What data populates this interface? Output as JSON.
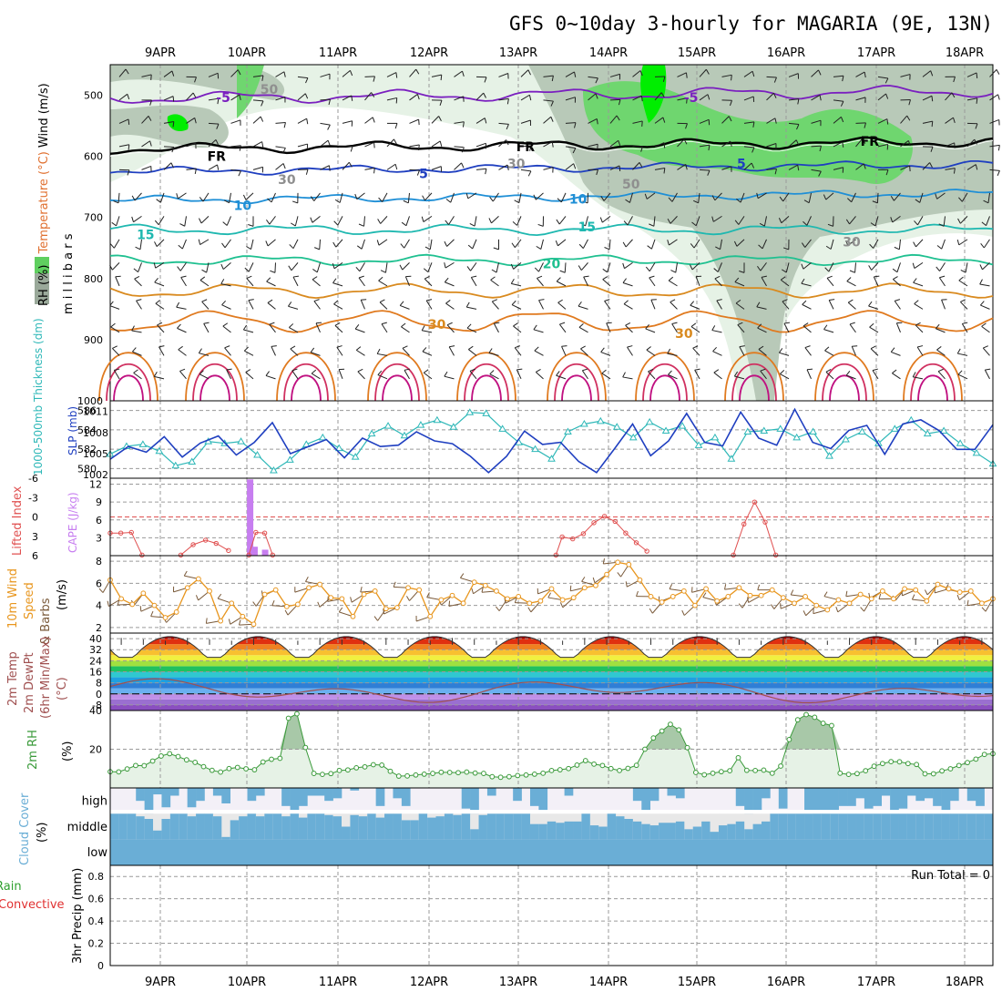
{
  "title": "GFS 0~10day 3-hourly for MAGARIA (9E, 13N)",
  "dates": [
    "9APR",
    "10APR",
    "11APR",
    "12APR",
    "13APR",
    "14APR",
    "15APR",
    "16APR",
    "17APR",
    "18APR"
  ],
  "colors": {
    "frame": "#000000",
    "grid": "#9a9a9a",
    "rh_light": "#e6f2e6",
    "rh_mid": "#b8c9b8",
    "rh_green": "#6fd66f",
    "rh_bright": "#00ee00",
    "thickness": "#2fb8b8",
    "slp": "#1f3fc0",
    "cape": "#c77ef0",
    "lifted": "#e05050",
    "wind10": "#e8961e",
    "barb10": "#7a5a3a",
    "dewpt": "#a05050",
    "rh2m": "#3a9a3a",
    "cloud": "#6aaed6",
    "cloud_bg": "#f3f0f7"
  },
  "chart_data": [
    {
      "type": "area",
      "panel": "upper-air",
      "ylabel_parts": [
        "RH (%)",
        "Temperature (°C)",
        "Wind (m/s)"
      ],
      "ylabel_units": "m i l l i b a r s",
      "yticks": [
        "500",
        "600",
        "700",
        "800",
        "900",
        "1000"
      ],
      "ylim": [
        1000,
        450
      ],
      "isotherm_labels": [
        {
          "label": "-5",
          "color": "#7a1fbf",
          "t": 0.12,
          "p": 504
        },
        {
          "label": "-5",
          "color": "#7a1fbf",
          "t": 0.65,
          "p": 504
        },
        {
          "label": "FR",
          "color": "#000000",
          "t": 0.11,
          "p": 600
        },
        {
          "label": "FR",
          "color": "#000000",
          "t": 0.46,
          "p": 584
        },
        {
          "label": "FR",
          "color": "#000000",
          "t": 0.85,
          "p": 575
        },
        {
          "label": "5",
          "color": "#1f3fc0",
          "t": 0.35,
          "p": 628
        },
        {
          "label": "5",
          "color": "#1f3fc0",
          "t": 0.71,
          "p": 612
        },
        {
          "label": "10",
          "color": "#1f8fd6",
          "t": 0.14,
          "p": 680
        },
        {
          "label": "10",
          "color": "#1f8fd6",
          "t": 0.52,
          "p": 670
        },
        {
          "label": "15",
          "color": "#1fb8b0",
          "t": 0.03,
          "p": 728
        },
        {
          "label": "15",
          "color": "#1fb8b0",
          "t": 0.53,
          "p": 715
        },
        {
          "label": "20",
          "color": "#1fc090",
          "t": 0.49,
          "p": 776
        },
        {
          "label": "30",
          "color": "#d98a1f",
          "t": 0.36,
          "p": 875
        },
        {
          "label": "30",
          "color": "#d98a1f",
          "t": 0.64,
          "p": 890
        },
        {
          "label": "50",
          "color": "#8f8f8f",
          "t": 0.17,
          "p": 490
        },
        {
          "label": "50",
          "color": "#8f8f8f",
          "t": 0.58,
          "p": 645
        },
        {
          "label": "30",
          "color": "#8f8f8f",
          "t": 0.45,
          "p": 612
        },
        {
          "label": "30",
          "color": "#8f8f8f",
          "t": 0.19,
          "p": 638
        },
        {
          "label": "30",
          "color": "#8f8f8f",
          "t": 0.83,
          "p": 740
        }
      ]
    },
    {
      "type": "line",
      "panel": "thickness-slp",
      "ylabel_left": "1000-500mb Thickness (dm)",
      "ylabel_right": "SLP (mb)",
      "left_ticks": [
        "586",
        "584",
        "582",
        "580"
      ],
      "left_lim": [
        579,
        587
      ],
      "right_ticks": [
        "1011",
        "1008",
        "1005",
        "1002"
      ],
      "right_lim": [
        1001.5,
        1012.5
      ],
      "series": [
        {
          "key": "thickness",
          "values": [
            581.5,
            582.3,
            582.5,
            581.8,
            580.3,
            580.7,
            582.8,
            582.6,
            582.8,
            581.4,
            579.8,
            580.9,
            582.5,
            583.2,
            582.1,
            581.2,
            583.6,
            584.4,
            583.4,
            584.5,
            585.0,
            584.3,
            585.8,
            585.7,
            584.1,
            582.7,
            582.0,
            581.0,
            583.8,
            584.6,
            584.9,
            584.3,
            583.2,
            584.8,
            583.9,
            584.4,
            582.4,
            583.2,
            581.0,
            583.8,
            583.9,
            584.1,
            583.2,
            583.8,
            581.3,
            583.0,
            583.8,
            582.6,
            584.1,
            585.0,
            583.6,
            583.9,
            582.6,
            581.6,
            580.5
          ]
        },
        {
          "key": "slp",
          "values": [
            1004.2,
            1006.0,
            1005.2,
            1007.4,
            1004.5,
            1006.5,
            1007.5,
            1004.8,
            1006.6,
            1009.4,
            1005.0,
            1006.0,
            1007.0,
            1004.4,
            1007.2,
            1006.0,
            1006.2,
            1008.1,
            1006.8,
            1006.4,
            1004.6,
            1002.3,
            1004.6,
            1008.2,
            1006.3,
            1006.6,
            1003.9,
            1002.3,
            1005.7,
            1009.2,
            1004.7,
            1006.8,
            1010.7,
            1006.6,
            1006.1,
            1010.9,
            1007.2,
            1006.2,
            1011.3,
            1006.6,
            1005.7,
            1008.3,
            1009.0,
            1004.9,
            1009.2,
            1009.8,
            1008.3,
            1005.6,
            1005.6,
            1009.1
          ]
        }
      ]
    },
    {
      "type": "bar",
      "panel": "cape-lifted",
      "ylabel_left": "Lifted Index",
      "ylabel_right": "CAPE (J/kg)",
      "left_ticks": [
        "-6",
        "-3",
        "0",
        "3",
        "6"
      ],
      "right_ticks": [
        "12",
        "9",
        "6",
        "3"
      ],
      "cape_lim": [
        0,
        13
      ],
      "cape_bars": [
        {
          "t": 0.158,
          "value": 12.8
        },
        {
          "t": 0.163,
          "value": 1.5
        },
        {
          "t": 0.175,
          "value": 1.0
        }
      ],
      "lifted_zero_line": 0,
      "lifted_segments": [
        [
          {
            "t": 0.0,
            "v": 2.5
          },
          {
            "t": 0.012,
            "v": 2.5
          },
          {
            "t": 0.024,
            "v": 2.4
          },
          {
            "t": 0.036,
            "v": 5.9
          }
        ],
        [
          {
            "t": 0.08,
            "v": 5.9
          },
          {
            "t": 0.094,
            "v": 4.3
          },
          {
            "t": 0.108,
            "v": 3.6
          },
          {
            "t": 0.12,
            "v": 4.1
          },
          {
            "t": 0.134,
            "v": 5.2
          }
        ],
        [
          {
            "t": 0.157,
            "v": 5.9
          },
          {
            "t": 0.165,
            "v": 2.4
          },
          {
            "t": 0.175,
            "v": 2.5
          },
          {
            "t": 0.184,
            "v": 5.9
          }
        ],
        [
          {
            "t": 0.505,
            "v": 5.9
          },
          {
            "t": 0.512,
            "v": 3.1
          },
          {
            "t": 0.524,
            "v": 3.4
          },
          {
            "t": 0.536,
            "v": 2.6
          },
          {
            "t": 0.548,
            "v": 0.9
          },
          {
            "t": 0.56,
            "v": -0.1
          },
          {
            "t": 0.572,
            "v": 0.7
          },
          {
            "t": 0.584,
            "v": 2.5
          },
          {
            "t": 0.596,
            "v": 4.0
          },
          {
            "t": 0.608,
            "v": 5.3
          }
        ],
        [
          {
            "t": 0.706,
            "v": 5.9
          },
          {
            "t": 0.718,
            "v": 1.1
          },
          {
            "t": 0.73,
            "v": -2.3
          },
          {
            "t": 0.742,
            "v": 0.8
          },
          {
            "t": 0.754,
            "v": 5.9
          }
        ]
      ]
    },
    {
      "type": "line",
      "panel": "wind10m",
      "ylabel": [
        "10m Wind",
        "Speed",
        "& Barbs",
        "(m/s)"
      ],
      "ticks": [
        "8",
        "6",
        "4",
        "2"
      ],
      "ylim": [
        1.5,
        8.5
      ],
      "values": [
        6.3,
        4.6,
        4.1,
        5.1,
        4.0,
        2.9,
        3.4,
        5.6,
        6.4,
        5.3,
        2.6,
        4.2,
        3.0,
        2.3,
        5.0,
        5.4,
        3.9,
        4.1,
        5.6,
        5.9,
        4.7,
        4.6,
        3.0,
        5.0,
        5.3,
        3.7,
        3.8,
        5.6,
        5.4,
        3.0,
        4.5,
        4.9,
        4.2,
        6.1,
        5.8,
        5.3,
        4.6,
        4.8,
        4.2,
        4.4,
        5.5,
        4.5,
        4.7,
        5.6,
        5.8,
        6.8,
        7.9,
        7.7,
        6.3,
        4.8,
        4.3,
        4.8,
        5.3,
        4.0,
        5.5,
        4.4,
        4.8,
        5.6,
        4.9,
        4.9,
        5.4,
        4.7,
        4.2,
        4.8,
        4.0,
        3.6,
        4.5,
        4.2,
        5.0,
        4.6,
        5.3,
        4.6,
        5.5,
        5.4,
        4.4,
        5.9,
        5.5,
        5.2,
        5.3,
        4.2,
        4.6
      ]
    },
    {
      "type": "area",
      "panel": "temp2m",
      "ylabel": [
        "2m Temp",
        "2m DewPt",
        "(6hr Min/Max)",
        "(°C)"
      ],
      "ticks": [
        "40",
        "32",
        "24",
        "16",
        "8",
        "0",
        "-8"
      ],
      "ylim": [
        -12,
        44
      ],
      "tmin": 26.5,
      "tmax": 41.5,
      "dewpt_mean": 2.0
    },
    {
      "type": "area",
      "panel": "rh2m",
      "ylabel": [
        "2m RH",
        "(%)"
      ],
      "ticks": [
        "40",
        "20"
      ],
      "ylim": [
        0,
        40
      ],
      "values": [
        8.4,
        8.3,
        9.8,
        11.6,
        11.5,
        13.9,
        16.5,
        17.7,
        16.2,
        14.5,
        13.2,
        11.0,
        9.1,
        8.2,
        10.0,
        10.6,
        9.9,
        9.4,
        13.4,
        14.8,
        15.3,
        36.0,
        38.3,
        20.9,
        7.5,
        7.0,
        7.4,
        9.0,
        9.3,
        10.4,
        10.9,
        12.0,
        11.8,
        8.6,
        6.1,
        6.2,
        6.7,
        7.1,
        7.5,
        8.1,
        8.0,
        7.9,
        8.2,
        7.7,
        7.5,
        5.8,
        5.5,
        5.8,
        6.4,
        6.7,
        7.1,
        7.6,
        9.0,
        9.4,
        10.0,
        11.8,
        14.1,
        12.3,
        11.6,
        10.0,
        9.0,
        10.1,
        11.7,
        20.0,
        25.8,
        29.4,
        32.9,
        30.0,
        20.8,
        8.0,
        6.8,
        7.6,
        8.4,
        8.9,
        15.6,
        9.1,
        9.0,
        9.2,
        7.6,
        11.3,
        25.0,
        35.2,
        37.9,
        36.5,
        33.4,
        32.2,
        7.6,
        7.0,
        7.4,
        8.9,
        11.2,
        12.6,
        13.6,
        13.5,
        12.6,
        12.1,
        7.3,
        7.3,
        8.8,
        9.9,
        11.6,
        13.1,
        14.9,
        17.3,
        17.7
      ]
    },
    {
      "type": "bar",
      "panel": "cloud",
      "ylabel": [
        "Cloud Cover",
        "(%)"
      ],
      "levels": [
        "high",
        "middle",
        "low"
      ],
      "high": [
        0,
        0,
        0,
        10,
        20,
        5,
        15,
        6,
        0,
        15,
        10,
        0,
        6,
        12,
        0,
        0,
        10,
        6,
        0,
        0,
        14,
        20,
        14,
        6,
        6,
        10,
        8,
        0,
        2,
        0,
        0,
        14,
        0,
        8,
        14,
        0,
        0,
        0,
        0,
        0,
        0,
        16,
        20,
        0,
        6,
        0,
        0,
        10,
        0,
        14,
        18,
        0,
        0,
        6,
        0,
        0,
        0,
        0,
        0,
        0,
        0,
        10,
        18,
        10,
        0,
        6,
        8,
        0,
        0,
        0,
        0,
        0,
        0,
        14,
        20,
        18,
        8,
        0,
        16,
        0,
        0,
        18,
        20,
        20,
        18,
        14,
        14,
        8,
        16,
        14,
        6,
        18,
        16,
        6,
        10,
        8,
        14,
        18,
        10,
        0,
        10,
        14,
        0
      ],
      "middle": [
        100,
        100,
        100,
        90,
        80,
        35,
        80,
        100,
        100,
        90,
        100,
        100,
        90,
        10,
        75,
        90,
        100,
        90,
        100,
        100,
        90,
        100,
        85,
        100,
        100,
        95,
        90,
        50,
        95,
        90,
        100,
        85,
        100,
        100,
        75,
        75,
        100,
        85,
        90,
        100,
        95,
        100,
        40,
        95,
        100,
        100,
        100,
        100,
        100,
        60,
        60,
        70,
        65,
        70,
        70,
        100,
        55,
        50,
        100,
        90,
        80,
        70,
        60,
        55,
        65,
        65,
        70,
        40,
        50,
        70,
        30,
        55,
        60,
        70,
        40,
        60,
        70,
        100,
        100,
        100,
        100,
        100,
        100,
        100,
        100,
        100,
        100,
        100,
        100,
        100,
        100,
        100,
        100,
        100,
        100,
        100,
        100,
        100,
        100,
        100,
        100,
        100,
        100,
        100
      ],
      "low": [
        100
      ]
    },
    {
      "type": "bar",
      "panel": "precip",
      "ylabel_parts": [
        "Total / Rain",
        "Convective",
        "3hr Precip (mm)"
      ],
      "ticks": [
        "0.8",
        "0.6",
        "0.4",
        "0.2",
        "0"
      ],
      "ylim": [
        0,
        0.9
      ],
      "run_total": "Run Total = 0",
      "values": []
    }
  ]
}
